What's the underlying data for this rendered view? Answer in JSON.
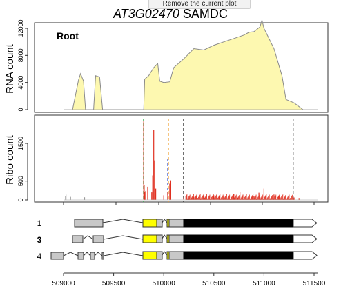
{
  "tooltip": "Remove the current plot",
  "title": {
    "gene": "AT3G02470",
    "name": "SAMDC"
  },
  "rna_panel": {
    "tissue_label": "Root",
    "ylabel": "RNA count",
    "yticks": [
      "0",
      "4000",
      "8000",
      "12000"
    ],
    "fill_color": "#fdf8b0",
    "line_color": "#8a8a8a"
  },
  "ribo_panel": {
    "ylabel": "Ribo count",
    "yticks": [
      "0",
      "500",
      "1500"
    ],
    "bar_color": "#e03020"
  },
  "transcripts": {
    "labels": [
      "1",
      "3",
      "4"
    ],
    "highlighted": "3"
  },
  "x_axis": {
    "ticks": [
      "509000",
      "509500",
      "510000",
      "510500",
      "511000",
      "511500"
    ]
  },
  "chart_data": [
    {
      "type": "area",
      "title": "",
      "ylabel": "RNA count",
      "xlim": [
        508850,
        511580
      ],
      "ylim": [
        0,
        13500
      ],
      "x": [
        509090,
        509150,
        509170,
        509200,
        509220,
        509300,
        509320,
        509360,
        509390,
        509800,
        509810,
        509850,
        509900,
        509940,
        509960,
        510000,
        510060,
        510100,
        510200,
        510300,
        510400,
        510500,
        510600,
        510700,
        510800,
        510850,
        510900,
        510960,
        510980,
        511000,
        511100,
        511180,
        511220,
        511300,
        511390
      ],
      "values": [
        0,
        4400,
        5300,
        4200,
        0,
        0,
        5000,
        4800,
        0,
        0,
        4500,
        5000,
        6200,
        6800,
        4200,
        4000,
        4100,
        6200,
        7500,
        9000,
        8800,
        9500,
        10000,
        10500,
        11000,
        11400,
        11500,
        12200,
        13200,
        12000,
        9000,
        5000,
        1500,
        1000,
        0
      ]
    },
    {
      "type": "bar",
      "title": "",
      "ylabel": "Ribo count",
      "xlim": [
        508850,
        511580
      ],
      "ylim": [
        0,
        2300
      ],
      "x": [
        509020,
        509025,
        509070,
        509210,
        509800,
        509805,
        509810,
        509820,
        509840,
        509880,
        509890,
        509900,
        509910,
        509920,
        510000,
        510040,
        510060,
        510070,
        510200,
        510250,
        510300,
        510400,
        510500,
        510600,
        510700,
        510760,
        510800,
        510900,
        510950,
        511000,
        511100,
        511150,
        511200,
        511300,
        511350
      ],
      "values": [
        100,
        140,
        80,
        70,
        2100,
        400,
        220,
        240,
        350,
        200,
        650,
        1850,
        1050,
        300,
        120,
        200,
        430,
        520,
        60,
        40,
        80,
        100,
        120,
        90,
        150,
        210,
        140,
        100,
        190,
        300,
        140,
        90,
        150,
        60,
        50
      ]
    }
  ]
}
